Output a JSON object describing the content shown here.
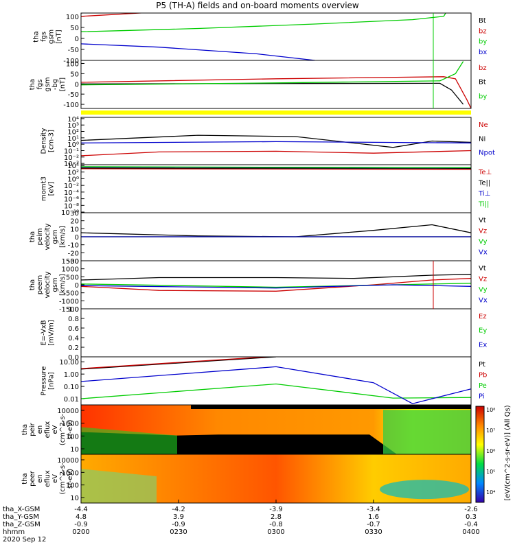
{
  "title": "P5 (TH-A) fields and on-board moments overview",
  "colors": {
    "black": "#000000",
    "red": "#cc0000",
    "green": "#00cc00",
    "blue": "#0000cc",
    "yellow": "#ffff00"
  },
  "chart_data": [
    {
      "type": "line",
      "panel": "fgs-gsm",
      "ylabel": [
        "tha",
        "fgs",
        "gsm",
        "[nT]"
      ],
      "yticks": [
        "100",
        "50",
        "0",
        "-50",
        "-100"
      ],
      "ylim": [
        -100,
        115
      ],
      "series": [
        {
          "name": "Bt",
          "color": "#000000",
          "values": [
            [
              0,
              115
            ],
            [
              0.2,
              130
            ]
          ]
        },
        {
          "name": "bz",
          "color": "#cc0000",
          "values": [
            [
              0,
              100
            ],
            [
              0.2,
              120
            ]
          ]
        },
        {
          "name": "by",
          "color": "#00cc00",
          "values": [
            [
              0,
              30
            ],
            [
              0.3,
              45
            ],
            [
              0.6,
              65
            ],
            [
              0.85,
              85
            ],
            [
              0.93,
              100
            ],
            [
              0.94,
              130
            ]
          ]
        },
        {
          "name": "bx",
          "color": "#0000cc",
          "values": [
            [
              0,
              -25
            ],
            [
              0.2,
              -40
            ],
            [
              0.45,
              -70
            ],
            [
              0.6,
              -100
            ]
          ]
        }
      ]
    },
    {
      "type": "line",
      "panel": "fgs-gsm-bg",
      "ylabel": [
        "tha",
        "fgs",
        "gsm",
        "-bg",
        "[nT]"
      ],
      "yticks": [
        "100",
        "50",
        "0",
        "-50",
        "-100"
      ],
      "ylim": [
        -120,
        115
      ],
      "series": [
        {
          "name": "bz",
          "color": "#cc0000",
          "values": [
            [
              0,
              8
            ],
            [
              0.5,
              25
            ],
            [
              0.93,
              35
            ],
            [
              0.96,
              25
            ],
            [
              0.99,
              -80
            ],
            [
              1.0,
              -120
            ]
          ]
        },
        {
          "name": "Bt",
          "color": "#000000",
          "values": [
            [
              0,
              0
            ],
            [
              0.5,
              2
            ],
            [
              0.92,
              3
            ],
            [
              0.95,
              -30
            ],
            [
              0.98,
              -100
            ]
          ]
        },
        {
          "name": "by",
          "color": "#00cc00",
          "values": [
            [
              0,
              -5
            ],
            [
              0.5,
              5
            ],
            [
              0.92,
              15
            ],
            [
              0.96,
              50
            ],
            [
              0.98,
              110
            ]
          ]
        }
      ]
    },
    {
      "type": "line",
      "panel": "density",
      "ylabel": [
        "Density",
        "[cm-3]"
      ],
      "yticks": [
        "10^4",
        "10^3",
        "10^2",
        "10^1",
        "10^0",
        "10^-1",
        "10^-2",
        "10^-3"
      ],
      "series": [
        {
          "name": "Ne",
          "color": "#cc0000",
          "values": [
            [
              0,
              -1.8
            ],
            [
              0.2,
              -1.2
            ],
            [
              0.5,
              -1.1
            ],
            [
              0.75,
              -1.4
            ],
            [
              1,
              -1.0
            ]
          ]
        },
        {
          "name": "Ni",
          "color": "#000000",
          "values": [
            [
              0,
              0.6
            ],
            [
              0.3,
              1.4
            ],
            [
              0.55,
              1.2
            ],
            [
              0.8,
              -0.5
            ],
            [
              0.9,
              0.5
            ],
            [
              1,
              0.3
            ]
          ]
        },
        {
          "name": "Npot",
          "color": "#0000cc",
          "values": [
            [
              0,
              0.2
            ],
            [
              0.5,
              0.4
            ],
            [
              1,
              0.2
            ]
          ]
        }
      ]
    },
    {
      "type": "line",
      "panel": "moms-t",
      "ylabel": [
        "momt3",
        "[eV]"
      ],
      "yticks": [
        "10^4",
        "10^2",
        "10^0",
        "10^-2",
        "10^-4",
        "10^-6",
        "10^-8",
        "10^-10"
      ],
      "series": [
        {
          "name": "Te⊥",
          "color": "#cc0000",
          "values": [
            [
              0,
              3
            ],
            [
              1,
              2.8
            ]
          ]
        },
        {
          "name": "Te||",
          "color": "#000000",
          "values": [
            [
              0,
              3.2
            ],
            [
              1,
              3.1
            ]
          ]
        },
        {
          "name": "Ti⊥",
          "color": "#0000cc",
          "values": [
            [
              0,
              3.5
            ],
            [
              1,
              3.3
            ]
          ]
        },
        {
          "name": "Ti||",
          "color": "#00cc00",
          "values": [
            [
              0,
              3.6
            ],
            [
              1,
              3.3
            ]
          ]
        }
      ]
    },
    {
      "type": "line",
      "panel": "peim-velocity",
      "ylabel": [
        "tha",
        "peim",
        "velocity",
        "gsm",
        "[km/s]"
      ],
      "yticks": [
        "30",
        "20",
        "10",
        "0",
        "-10",
        "-20",
        "-30"
      ],
      "ylim": [
        -30,
        30
      ],
      "series": [
        {
          "name": "Vt",
          "color": "#000000",
          "values": [
            [
              0,
              5
            ],
            [
              0.3,
              1
            ],
            [
              0.55,
              0
            ],
            [
              0.75,
              8
            ],
            [
              0.9,
              15
            ],
            [
              1,
              5
            ]
          ]
        },
        {
          "name": "Vz",
          "color": "#cc0000",
          "values": [
            [
              0,
              0
            ],
            [
              1,
              0
            ]
          ]
        },
        {
          "name": "Vy",
          "color": "#00cc00",
          "values": [
            [
              0,
              0
            ],
            [
              1,
              0
            ]
          ]
        },
        {
          "name": "Vx",
          "color": "#0000cc",
          "values": [
            [
              0,
              0
            ],
            [
              1,
              0
            ]
          ]
        }
      ]
    },
    {
      "type": "line",
      "panel": "peem-velocity",
      "ylabel": [
        "tha",
        "peem",
        "velocity",
        "gsm",
        "[km/s]"
      ],
      "yticks": [
        "1500",
        "1000",
        "500",
        "0",
        "-500",
        "-1000",
        "-1500"
      ],
      "ylim": [
        -1500,
        1500
      ],
      "series": [
        {
          "name": "Vt",
          "color": "#000000",
          "values": [
            [
              0,
              300
            ],
            [
              0.2,
              450
            ],
            [
              0.5,
              450
            ],
            [
              0.7,
              400
            ],
            [
              0.9,
              600
            ],
            [
              1,
              650
            ]
          ]
        },
        {
          "name": "Vz",
          "color": "#cc0000",
          "values": [
            [
              0,
              -100
            ],
            [
              0.2,
              -350
            ],
            [
              0.5,
              -400
            ],
            [
              0.75,
              0
            ],
            [
              0.9,
              300
            ],
            [
              1,
              400
            ]
          ]
        },
        {
          "name": "Vy",
          "color": "#00cc00",
          "values": [
            [
              0,
              50
            ],
            [
              0.5,
              -150
            ],
            [
              0.8,
              0
            ],
            [
              1,
              100
            ]
          ]
        },
        {
          "name": "Vx",
          "color": "#0000cc",
          "values": [
            [
              0,
              -50
            ],
            [
              0.5,
              -200
            ],
            [
              0.8,
              0
            ],
            [
              1,
              -100
            ]
          ]
        }
      ]
    },
    {
      "type": "line",
      "panel": "efield",
      "ylabel": [
        "E=-VxB",
        "[mV/m]"
      ],
      "yticks": [
        "1.0",
        "0.8",
        "0.6",
        "0.4",
        "0.2",
        "0.0"
      ],
      "ylim": [
        0,
        1
      ],
      "series": [
        {
          "name": "Ez",
          "color": "#cc0000",
          "values": []
        },
        {
          "name": "Ey",
          "color": "#00cc00",
          "values": []
        },
        {
          "name": "Ex",
          "color": "#0000cc",
          "values": []
        }
      ]
    },
    {
      "type": "line",
      "panel": "pressure",
      "ylabel": [
        "Pressure",
        "[nPa]"
      ],
      "yticks": [
        "10.00",
        "1.00",
        "0.10",
        "0.01"
      ],
      "series": [
        {
          "name": "Pt",
          "color": "#000000",
          "values": [
            [
              0,
              0.4
            ],
            [
              0.5,
              1.4
            ]
          ]
        },
        {
          "name": "Pb",
          "color": "#cc0000",
          "values": [
            [
              0,
              0.45
            ],
            [
              0.5,
              1.45
            ]
          ]
        },
        {
          "name": "Pe",
          "color": "#00cc00",
          "values": [
            [
              0,
              -2
            ],
            [
              0.5,
              -0.8
            ],
            [
              0.8,
              -1.95
            ],
            [
              1,
              -1.9
            ]
          ]
        },
        {
          "name": "Pi",
          "color": "#0000cc",
          "values": [
            [
              0,
              -0.6
            ],
            [
              0.5,
              0.6
            ],
            [
              0.75,
              -0.7
            ],
            [
              0.85,
              -2.4
            ],
            [
              1,
              -1.2
            ]
          ]
        }
      ]
    },
    {
      "type": "heatmap",
      "panel": "peir-en-eflux",
      "ylabel": [
        "tha",
        "peir",
        "en",
        "eflux",
        "eV",
        "(cm^2-s-",
        "sr-eV)"
      ],
      "yticks": [
        "10000",
        "1000",
        "100",
        "10"
      ]
    },
    {
      "type": "heatmap",
      "panel": "peer-en-eflux",
      "ylabel": [
        "tha",
        "peer",
        "en",
        "eflux",
        "eV",
        "(cm^2-s-",
        "sr-eV)"
      ],
      "yticks": [
        "10000",
        "1000",
        "100",
        "10"
      ]
    }
  ],
  "colorbar": {
    "label": "[eV/(cm^2-s-sr-eV)] (All Qs)",
    "ticks": [
      "10^8",
      "10^7",
      "10^6",
      "10^5",
      "10^4"
    ]
  },
  "xaxis": {
    "ticks": [
      "-4.4",
      "-4.2",
      "-3.9",
      "-3.4",
      "-2.6"
    ]
  },
  "ephemeris": {
    "labels": [
      "tha_X-GSM",
      "tha_Y-GSM",
      "tha_Z-GSM",
      "hhmm",
      "2020 Sep 12"
    ],
    "rows": [
      [
        "4.8",
        "3.9",
        "2.8",
        "1.6",
        "0.3"
      ],
      [
        "-0.9",
        "-0.9",
        "-0.8",
        "-0.7",
        "-0.4"
      ],
      [
        "0200",
        "0230",
        "0300",
        "0330",
        "0400"
      ]
    ]
  }
}
